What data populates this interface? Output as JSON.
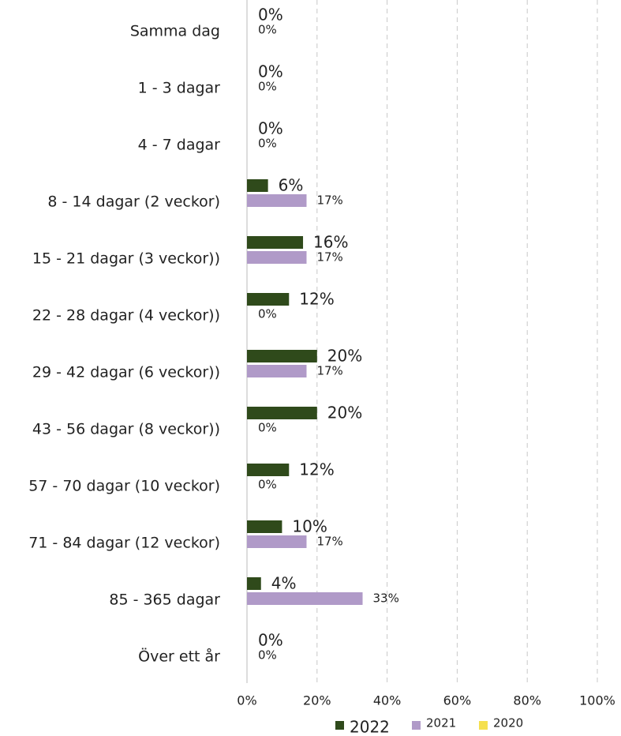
{
  "chart_data": {
    "type": "bar",
    "orientation": "horizontal",
    "categories": [
      "Samma dag",
      "1 - 3 dagar",
      "4 - 7 dagar",
      "8 - 14 dagar (2 veckor)",
      "15 - 21 dagar (3 veckor))",
      "22 - 28 dagar (4 veckor))",
      "29 - 42 dagar (6 veckor))",
      "43 - 56 dagar (8 veckor))",
      "57 - 70 dagar (10 veckor)",
      "71 - 84 dagar (12 veckor)",
      "85 - 365 dagar",
      "Över ett år"
    ],
    "series": [
      {
        "name": "2022",
        "color": "#2f4a1b",
        "values": [
          0,
          0,
          0,
          6,
          16,
          12,
          20,
          20,
          12,
          10,
          4,
          0
        ],
        "value_labels": [
          "0%",
          "0%",
          "0%",
          "6%",
          "16%",
          "12%",
          "20%",
          "20%",
          "12%",
          "10%",
          "4%",
          "0%"
        ]
      },
      {
        "name": "2021",
        "color": "#b09ac8",
        "values": [
          0,
          0,
          0,
          17,
          17,
          0,
          17,
          0,
          0,
          17,
          33,
          0
        ],
        "value_labels": [
          "0%",
          "0%",
          "0%",
          "17%",
          "17%",
          "0%",
          "17%",
          "0%",
          "0%",
          "17%",
          "33%",
          "0%"
        ]
      },
      {
        "name": "2020",
        "color": "#f5e04f",
        "values": [
          null,
          null,
          null,
          null,
          null,
          null,
          null,
          null,
          null,
          null,
          null,
          null
        ]
      }
    ],
    "xlim": [
      0,
      100
    ],
    "xticks": [
      {
        "value": 0,
        "label": "0%"
      },
      {
        "value": 20,
        "label": "20%"
      },
      {
        "value": 40,
        "label": "40%"
      },
      {
        "value": 60,
        "label": "60%"
      },
      {
        "value": 80,
        "label": "80%"
      },
      {
        "value": 100,
        "label": "100%"
      }
    ],
    "grid": true,
    "legend": "bottom"
  }
}
